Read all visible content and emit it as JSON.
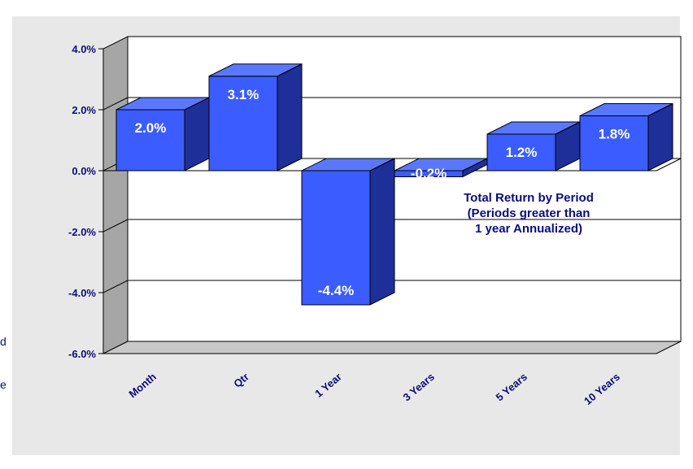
{
  "chart_data": {
    "type": "bar",
    "categories": [
      "Month",
      "Qtr",
      "1 Year",
      "3 Years",
      "5 Years",
      "10 Years"
    ],
    "values": [
      2.0,
      3.1,
      -4.4,
      -0.2,
      1.2,
      1.8
    ],
    "data_labels": [
      "2.0%",
      "3.1%",
      "-4.4%",
      "-0.2%",
      "1.2%",
      "1.8%"
    ],
    "yticks": [
      -6,
      -4,
      -2,
      0,
      2,
      4
    ],
    "ytick_labels": [
      "-6.0%",
      "-4.0%",
      "-2.0%",
      "0.0%",
      "2.0%",
      "4.0%"
    ],
    "ylim": [
      -6,
      4
    ],
    "grid": true,
    "three_d": true,
    "annotation_lines": [
      "Total Return by Period",
      "(Periods greater than",
      "1 year Annualized)"
    ],
    "colors": {
      "bar_front": "#3b5cff",
      "bar_side": "#1f2f99",
      "bar_top": "#5a78ff",
      "wall": "#ffffff",
      "side_wall": "#a6a6a6",
      "text": "#0c0c7c"
    }
  },
  "edge_fragments": [
    "d",
    "e"
  ]
}
